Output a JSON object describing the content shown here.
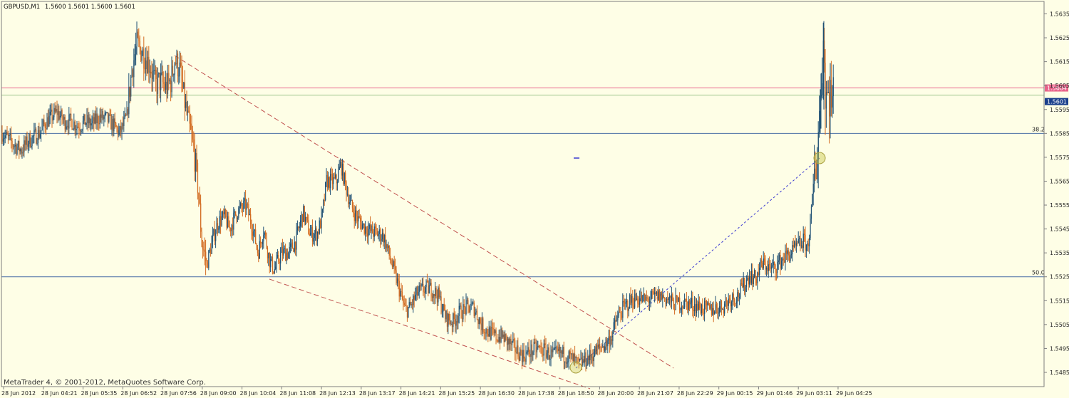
{
  "header": {
    "symbol": "GBPUSD,M1",
    "ohlc": "1.5600 1.5601 1.5600 1.5601"
  },
  "footer": {
    "copyright": "MetaTrader 4, © 2001-2012, MetaQuotes Software Corp."
  },
  "colors": {
    "background": "#fefee6",
    "frame": "#7f7f7f",
    "bull": "#1d4f73",
    "bear": "#d2691e",
    "level_line": "#4a6fa5",
    "ask_line": "#e8628a",
    "bid_line": "#9bc48a",
    "channel_line": "#c0504d",
    "projection_line": "#3a3ad0",
    "highlight": "#c9c74a"
  },
  "chart_data": {
    "type": "candlestick",
    "title": "GBPUSD,M1",
    "ylim": [
      1.5479,
      1.5641
    ],
    "y_ticks": [
      "1.5635",
      "1.5625",
      "1.5615",
      "1.5605",
      "1.5595",
      "1.5585",
      "1.5575",
      "1.5565",
      "1.5555",
      "1.5545",
      "1.5535",
      "1.5525",
      "1.5515",
      "1.5505",
      "1.5495",
      "1.5485"
    ],
    "x_ticks": [
      "28 Jun 2012",
      "28 Jun 04:21",
      "28 Jun 05:35",
      "28 Jun 06:52",
      "28 Jun 07:56",
      "28 Jun 09:00",
      "28 Jun 10:04",
      "28 Jun 11:08",
      "28 Jun 12:13",
      "28 Jun 13:17",
      "28 Jun 14:21",
      "28 Jun 15:25",
      "28 Jun 16:30",
      "28 Jun 17:38",
      "28 Jun 18:50",
      "28 Jun 20:00",
      "28 Jun 21:07",
      "28 Jun 22:29",
      "29 Jun 00:15",
      "29 Jun 01:46",
      "29 Jun 03:11",
      "29 Jun 04:25"
    ],
    "price_path": [
      [
        0,
        1.5586
      ],
      [
        10,
        1.5583
      ],
      [
        20,
        1.558
      ],
      [
        30,
        1.5578
      ],
      [
        40,
        1.5582
      ],
      [
        55,
        1.5585
      ],
      [
        65,
        1.559
      ],
      [
        80,
        1.5594
      ],
      [
        90,
        1.559
      ],
      [
        100,
        1.559
      ],
      [
        110,
        1.5588
      ],
      [
        120,
        1.559
      ],
      [
        130,
        1.5589
      ],
      [
        140,
        1.5592
      ],
      [
        150,
        1.5591
      ],
      [
        160,
        1.5588
      ],
      [
        168,
        1.5585
      ],
      [
        178,
        1.5592
      ],
      [
        185,
        1.5612
      ],
      [
        192,
        1.5622
      ],
      [
        200,
        1.5619
      ],
      [
        210,
        1.5614
      ],
      [
        218,
        1.5605
      ],
      [
        225,
        1.5607
      ],
      [
        233,
        1.5604
      ],
      [
        240,
        1.5607
      ],
      [
        245,
        1.5616
      ],
      [
        252,
        1.5612
      ],
      [
        258,
        1.56
      ],
      [
        265,
        1.5588
      ],
      [
        272,
        1.5578
      ],
      [
        278,
        1.5562
      ],
      [
        283,
        1.554
      ],
      [
        290,
        1.553
      ],
      [
        298,
        1.554
      ],
      [
        306,
        1.5548
      ],
      [
        315,
        1.555
      ],
      [
        322,
        1.5545
      ],
      [
        332,
        1.5552
      ],
      [
        345,
        1.5555
      ],
      [
        355,
        1.5545
      ],
      [
        362,
        1.5535
      ],
      [
        370,
        1.5545
      ],
      [
        378,
        1.5532
      ],
      [
        385,
        1.5528
      ],
      [
        395,
        1.5535
      ],
      [
        405,
        1.5535
      ],
      [
        415,
        1.554
      ],
      [
        425,
        1.5552
      ],
      [
        435,
        1.5543
      ],
      [
        445,
        1.5543
      ],
      [
        452,
        1.555
      ],
      [
        458,
        1.5565
      ],
      [
        465,
        1.5565
      ],
      [
        472,
        1.5565
      ],
      [
        478,
        1.5572
      ],
      [
        485,
        1.5563
      ],
      [
        492,
        1.5555
      ],
      [
        500,
        1.555
      ],
      [
        510,
        1.5546
      ],
      [
        520,
        1.5544
      ],
      [
        530,
        1.5543
      ],
      [
        538,
        1.5542
      ],
      [
        545,
        1.5535
      ],
      [
        552,
        1.5528
      ],
      [
        560,
        1.552
      ],
      [
        568,
        1.5511
      ],
      [
        575,
        1.5512
      ],
      [
        585,
        1.5518
      ],
      [
        595,
        1.552
      ],
      [
        605,
        1.552
      ],
      [
        615,
        1.5517
      ],
      [
        625,
        1.5508
      ],
      [
        635,
        1.5506
      ],
      [
        645,
        1.551
      ],
      [
        655,
        1.5512
      ],
      [
        665,
        1.5512
      ],
      [
        675,
        1.5505
      ],
      [
        685,
        1.5502
      ],
      [
        695,
        1.55
      ],
      [
        705,
        1.55
      ],
      [
        715,
        1.5497
      ],
      [
        725,
        1.5494
      ],
      [
        735,
        1.5492
      ],
      [
        745,
        1.5494
      ],
      [
        755,
        1.5495
      ],
      [
        765,
        1.5494
      ],
      [
        775,
        1.5492
      ],
      [
        785,
        1.5493
      ],
      [
        795,
        1.5492
      ],
      [
        805,
        1.549
      ],
      [
        812,
        1.5488
      ],
      [
        820,
        1.549
      ],
      [
        830,
        1.5492
      ],
      [
        840,
        1.5495
      ],
      [
        850,
        1.5497
      ],
      [
        858,
        1.55
      ],
      [
        865,
        1.5507
      ],
      [
        875,
        1.5512
      ],
      [
        885,
        1.5515
      ],
      [
        895,
        1.5516
      ],
      [
        905,
        1.5515
      ],
      [
        915,
        1.5516
      ],
      [
        925,
        1.5517
      ],
      [
        935,
        1.5516
      ],
      [
        945,
        1.5514
      ],
      [
        955,
        1.5514
      ],
      [
        965,
        1.5514
      ],
      [
        975,
        1.5513
      ],
      [
        985,
        1.5512
      ],
      [
        995,
        1.5511
      ],
      [
        1005,
        1.5512
      ],
      [
        1015,
        1.5513
      ],
      [
        1025,
        1.5516
      ],
      [
        1035,
        1.5517
      ],
      [
        1045,
        1.5522
      ],
      [
        1052,
        1.5526
      ],
      [
        1060,
        1.5524
      ],
      [
        1068,
        1.553
      ],
      [
        1075,
        1.553
      ],
      [
        1082,
        1.5528
      ],
      [
        1090,
        1.553
      ],
      [
        1100,
        1.5533
      ],
      [
        1110,
        1.5535
      ],
      [
        1120,
        1.5538
      ],
      [
        1128,
        1.554
      ],
      [
        1133,
        1.5537
      ],
      [
        1138,
        1.555
      ],
      [
        1142,
        1.5565
      ],
      [
        1146,
        1.5575
      ],
      [
        1149,
        1.559
      ],
      [
        1152,
        1.5605
      ],
      [
        1155,
        1.5625
      ],
      [
        1158,
        1.5605
      ],
      [
        1161,
        1.56
      ],
      [
        1164,
        1.5603
      ],
      [
        1167,
        1.5598
      ],
      [
        1170,
        1.5601
      ]
    ],
    "levels": [
      {
        "label": "38.2",
        "price": 1.5585
      },
      {
        "label": "50.0",
        "price": 1.5525
      }
    ],
    "ask": {
      "label": "1.5604",
      "price": 1.5604
    },
    "bid": {
      "label": "1.5601",
      "price": 1.5601
    }
  }
}
